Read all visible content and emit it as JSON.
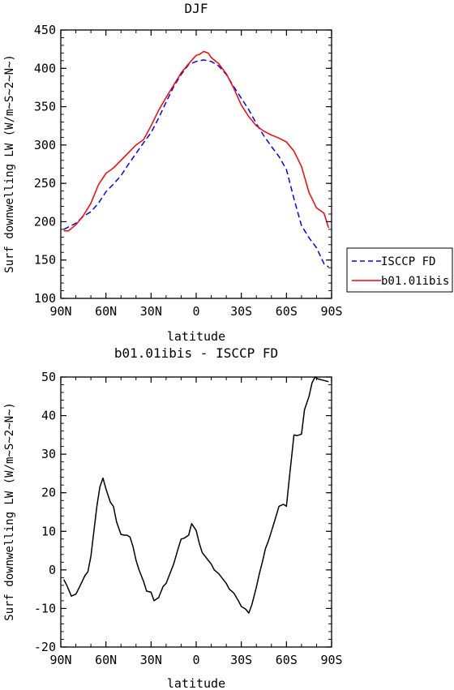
{
  "chart_data": [
    {
      "type": "line",
      "title": "DJF",
      "xlabel": "latitude",
      "ylabel": "Surf downwelling LW (W/m~S~2~N~)",
      "xlim": [
        -90,
        90
      ],
      "ylim": [
        100,
        450
      ],
      "xticks": [
        -90,
        -60,
        -30,
        0,
        30,
        60,
        90
      ],
      "xticklabels": [
        "90N",
        "60N",
        "30N",
        "0",
        "30S",
        "60S",
        "90S"
      ],
      "yticks": [
        100,
        150,
        200,
        250,
        300,
        350,
        400,
        450
      ],
      "yticklabels": [
        "100",
        "150",
        "200",
        "250",
        "300",
        "350",
        "400",
        "450"
      ],
      "legend_position": "outside-right",
      "series": [
        {
          "name": "ISCCP FD",
          "color": "#0000ff",
          "dash": "dashed",
          "x": [
            -88,
            -85,
            -80,
            -75,
            -70,
            -65,
            -60,
            -55,
            -50,
            -45,
            -40,
            -35,
            -30,
            -25,
            -20,
            -15,
            -10,
            -5,
            0,
            5,
            10,
            15,
            20,
            25,
            30,
            35,
            40,
            45,
            50,
            55,
            60,
            65,
            70,
            75,
            80,
            85,
            88
          ],
          "values": [
            190,
            193,
            198,
            207,
            213,
            224,
            239,
            249,
            260,
            275,
            289,
            303,
            316,
            335,
            356,
            376,
            392,
            405,
            409,
            411,
            409,
            403,
            392,
            376,
            361,
            346,
            328,
            312,
            298,
            285,
            268,
            230,
            195,
            179,
            166,
            145,
            141
          ]
        },
        {
          "name": "b01.01ibis",
          "color": "#ff0000",
          "dash": "solid",
          "x": [
            -88,
            -85,
            -80,
            -75,
            -70,
            -65,
            -60,
            -55,
            -50,
            -45,
            -40,
            -35,
            -30,
            -25,
            -20,
            -15,
            -10,
            -5,
            0,
            2,
            5,
            8,
            10,
            15,
            20,
            25,
            30,
            35,
            40,
            45,
            50,
            55,
            60,
            65,
            70,
            75,
            80,
            85,
            88
          ],
          "values": [
            188,
            188,
            196,
            208,
            224,
            248,
            263,
            270,
            280,
            290,
            300,
            307,
            325,
            345,
            362,
            378,
            394,
            406,
            417,
            418,
            422,
            420,
            414,
            406,
            393,
            374,
            352,
            337,
            325,
            318,
            313,
            309,
            304,
            292,
            272,
            238,
            218,
            211,
            192
          ]
        }
      ]
    },
    {
      "type": "line",
      "title": "b01.01ibis - ISCCP FD",
      "xlabel": "latitude",
      "ylabel": "Surf downwelling LW (W/m~S~2~N~)",
      "xlim": [
        -90,
        90
      ],
      "ylim": [
        -20,
        50
      ],
      "xticks": [
        -90,
        -60,
        -30,
        0,
        30,
        60,
        90
      ],
      "xticklabels": [
        "90N",
        "60N",
        "30N",
        "0",
        "30S",
        "60S",
        "90S"
      ],
      "yticks": [
        -20,
        -10,
        0,
        10,
        20,
        30,
        40,
        50
      ],
      "yticklabels": [
        "-20",
        "-10",
        "0",
        "10",
        "20",
        "30",
        "40",
        "50"
      ],
      "series": [
        {
          "color": "#000000",
          "dash": "solid",
          "x": [
            -88,
            -86,
            -83,
            -80,
            -77,
            -74,
            -72,
            -70,
            -68,
            -66,
            -64,
            -62,
            -60,
            -57,
            -55,
            -53,
            -50,
            -48,
            -46,
            -44,
            -42,
            -40,
            -38,
            -35,
            -33,
            -30,
            -28,
            -25,
            -22,
            -20,
            -18,
            -15,
            -12,
            -10,
            -8,
            -5,
            -3,
            0,
            2,
            4,
            6,
            8,
            10,
            12,
            15,
            18,
            20,
            22,
            25,
            28,
            30,
            33,
            35,
            37,
            40,
            42,
            44,
            46,
            48,
            50,
            52,
            55,
            58,
            60,
            62,
            65,
            67,
            70,
            72,
            75,
            77,
            79,
            81,
            84,
            86,
            88
          ],
          "values": [
            -2.5,
            -4,
            -6.8,
            -6.3,
            -4,
            -1.5,
            -0.5,
            3.5,
            10,
            16.5,
            21.5,
            23.8,
            21,
            17.5,
            16.5,
            12.5,
            9.2,
            9.0,
            9,
            8.5,
            6,
            2.5,
            0,
            -3,
            -5.5,
            -5.8,
            -8,
            -7.2,
            -4.3,
            -3.5,
            -1.5,
            1.5,
            5.5,
            8,
            8.2,
            9,
            12,
            10.2,
            7,
            4.5,
            3.5,
            2.5,
            1.5,
            0,
            -1,
            -2.5,
            -3.5,
            -5,
            -6,
            -8,
            -9.5,
            -10.2,
            -11.2,
            -9,
            -4.5,
            -1,
            2,
            5.5,
            7.5,
            10,
            12.5,
            16.5,
            17,
            16.5,
            24,
            35,
            34.8,
            35.2,
            41.5,
            45,
            48.5,
            50,
            49.5,
            49.2,
            49,
            48.8
          ]
        }
      ]
    }
  ]
}
